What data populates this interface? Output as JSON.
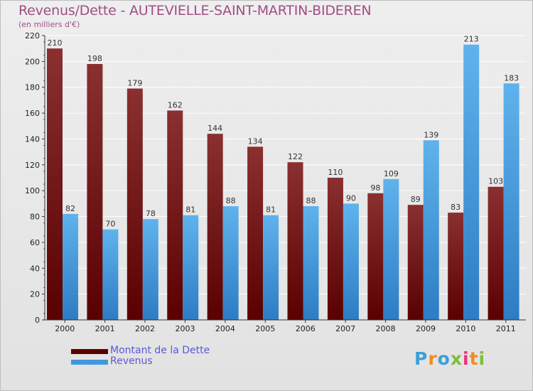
{
  "title": "Revenus/Dette - AUTEVIELLE-SAINT-MARTIN-BIDEREN",
  "subtitle": "(en milliers d'€)",
  "logo": {
    "letters": [
      "P",
      "r",
      "o",
      "x",
      "i",
      "t",
      "i"
    ],
    "colors": [
      "#3aa0d8",
      "#f08c1e",
      "#3aa0d8",
      "#7cbf3a",
      "#e8327c",
      "#f08c1e",
      "#7cbf3a"
    ]
  },
  "colors": {
    "debt_top": "#8a3030",
    "debt_bottom": "#5a0000",
    "rev_top": "#5fb3ec",
    "rev_bottom": "#2d7cc4"
  },
  "chart_data": {
    "type": "bar",
    "title": "Revenus/Dette - AUTEVIELLE-SAINT-MARTIN-BIDEREN",
    "ylabel": "(en milliers d'€)",
    "xlabel": "",
    "categories": [
      "2000",
      "2001",
      "2002",
      "2003",
      "2004",
      "2005",
      "2006",
      "2007",
      "2008",
      "2009",
      "2010",
      "2011"
    ],
    "series": [
      {
        "name": "Montant de la Dette",
        "values": [
          210,
          198,
          179,
          162,
          144,
          134,
          122,
          110,
          98,
          89,
          83,
          103
        ]
      },
      {
        "name": "Revenus",
        "values": [
          82,
          70,
          78,
          81,
          88,
          81,
          88,
          90,
          109,
          139,
          213,
          183
        ]
      }
    ],
    "ylim": [
      0,
      220
    ],
    "yticks": [
      0,
      20,
      40,
      60,
      80,
      100,
      120,
      140,
      160,
      180,
      200,
      220
    ],
    "grid": true,
    "legend": "bottom-left"
  }
}
